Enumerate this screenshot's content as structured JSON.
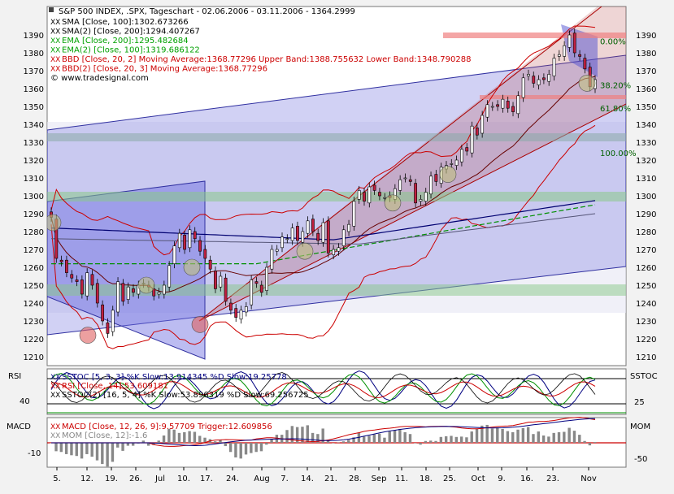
{
  "chart_data": {
    "type": "candlestick",
    "title": "S&P 500 INDEX, .SPX, Tageschart - 02.06.2006 - 03.11.2006 - 1364.2999",
    "watermark": "© www.tradesignal.com",
    "legend": [
      {
        "label": "SMA [Close, 100]:1302.673266",
        "color": "#000000"
      },
      {
        "label": "SMA(2) [Close, 200]:1294.407267",
        "color": "#000000"
      },
      {
        "label": "EMA [Close, 200]:1295.482684",
        "color": "#00a000"
      },
      {
        "label": "EMA(2) [Close, 100]:1319.686122",
        "color": "#00a000"
      },
      {
        "label": "BBD [Close, 20, 2] Moving Average:1368.77296 Upper Band:1388.755632 Lower Band:1348.790288",
        "color": "#cc0000"
      },
      {
        "label": "BBD(2) [Close, 20, 3] Moving Average:1368.77296",
        "color": "#cc0000"
      }
    ],
    "price_axis": {
      "min": 1210,
      "max": 1390,
      "step": 10
    },
    "fib_labels": [
      {
        "label": "0.00%",
        "price": 1386.5
      },
      {
        "label": "38.20%",
        "price": 1362
      },
      {
        "label": "61.80%",
        "price": 1349
      },
      {
        "label": "100.00%",
        "price": 1324
      }
    ],
    "x_ticks": [
      "5.",
      "12.",
      "19.",
      "26.",
      "Jul",
      "10.",
      "17.",
      "24.",
      "Aug",
      "7.",
      "14.",
      "21.",
      "28.",
      "Sep",
      "11.",
      "18.",
      "25.",
      "Oct",
      "9.",
      "16.",
      "23.",
      "Nov"
    ],
    "close": [
      1288,
      1265,
      1263,
      1257,
      1254,
      1252,
      1245,
      1257,
      1250,
      1240,
      1230,
      1223,
      1236,
      1252,
      1241,
      1249,
      1246,
      1250,
      1251,
      1249,
      1244,
      1246,
      1250,
      1261,
      1272,
      1279,
      1270,
      1281,
      1276,
      1269,
      1265,
      1259,
      1248,
      1255,
      1241,
      1236,
      1232,
      1236,
      1238,
      1253,
      1251,
      1246,
      1260,
      1270,
      1270,
      1277,
      1276,
      1282,
      1275,
      1280,
      1286,
      1280,
      1275,
      1285,
      1268,
      1270,
      1271,
      1281,
      1284,
      1297,
      1303,
      1297,
      1305,
      1303,
      1300,
      1299,
      1299,
      1304,
      1309,
      1310,
      1308,
      1296,
      1298,
      1302,
      1311,
      1308,
      1316,
      1317,
      1318,
      1320,
      1326,
      1325,
      1339,
      1334,
      1345,
      1351,
      1350,
      1350,
      1354,
      1349,
      1347,
      1356,
      1366,
      1368,
      1363,
      1365,
      1365,
      1368,
      1377,
      1379,
      1384,
      1390,
      1380,
      1378,
      1371,
      1361,
      1365
    ],
    "rsi_panel": {
      "left_label": "RSI",
      "right_label": "SSTOC",
      "left_ticks": [
        "40"
      ],
      "right_ticks": [
        "25"
      ],
      "legend": [
        {
          "label": "SSTOC [5, 3, 3] %K Slow:13.914345 %D Slow:19.25778",
          "color": "#000080"
        },
        {
          "label": "RSI [Close, 14]:53.609181",
          "color": "#cc0000"
        },
        {
          "label": "SSTOC(2) [16, 5, 4] %K Slow:53.896319 %D Slow:69.256725",
          "color": "#000000"
        }
      ]
    },
    "macd_panel": {
      "left_label": "MACD",
      "right_label": "MOM",
      "left_ticks": [
        "-10"
      ],
      "right_ticks": [
        "-50"
      ],
      "legend": [
        {
          "label": "MACD [Close, 12, 26, 9]:9.57709 Trigger:12.609856",
          "color": "#cc0000"
        },
        {
          "label": "MOM [Close, 12]:-1.6",
          "color": "#888888"
        }
      ]
    }
  }
}
